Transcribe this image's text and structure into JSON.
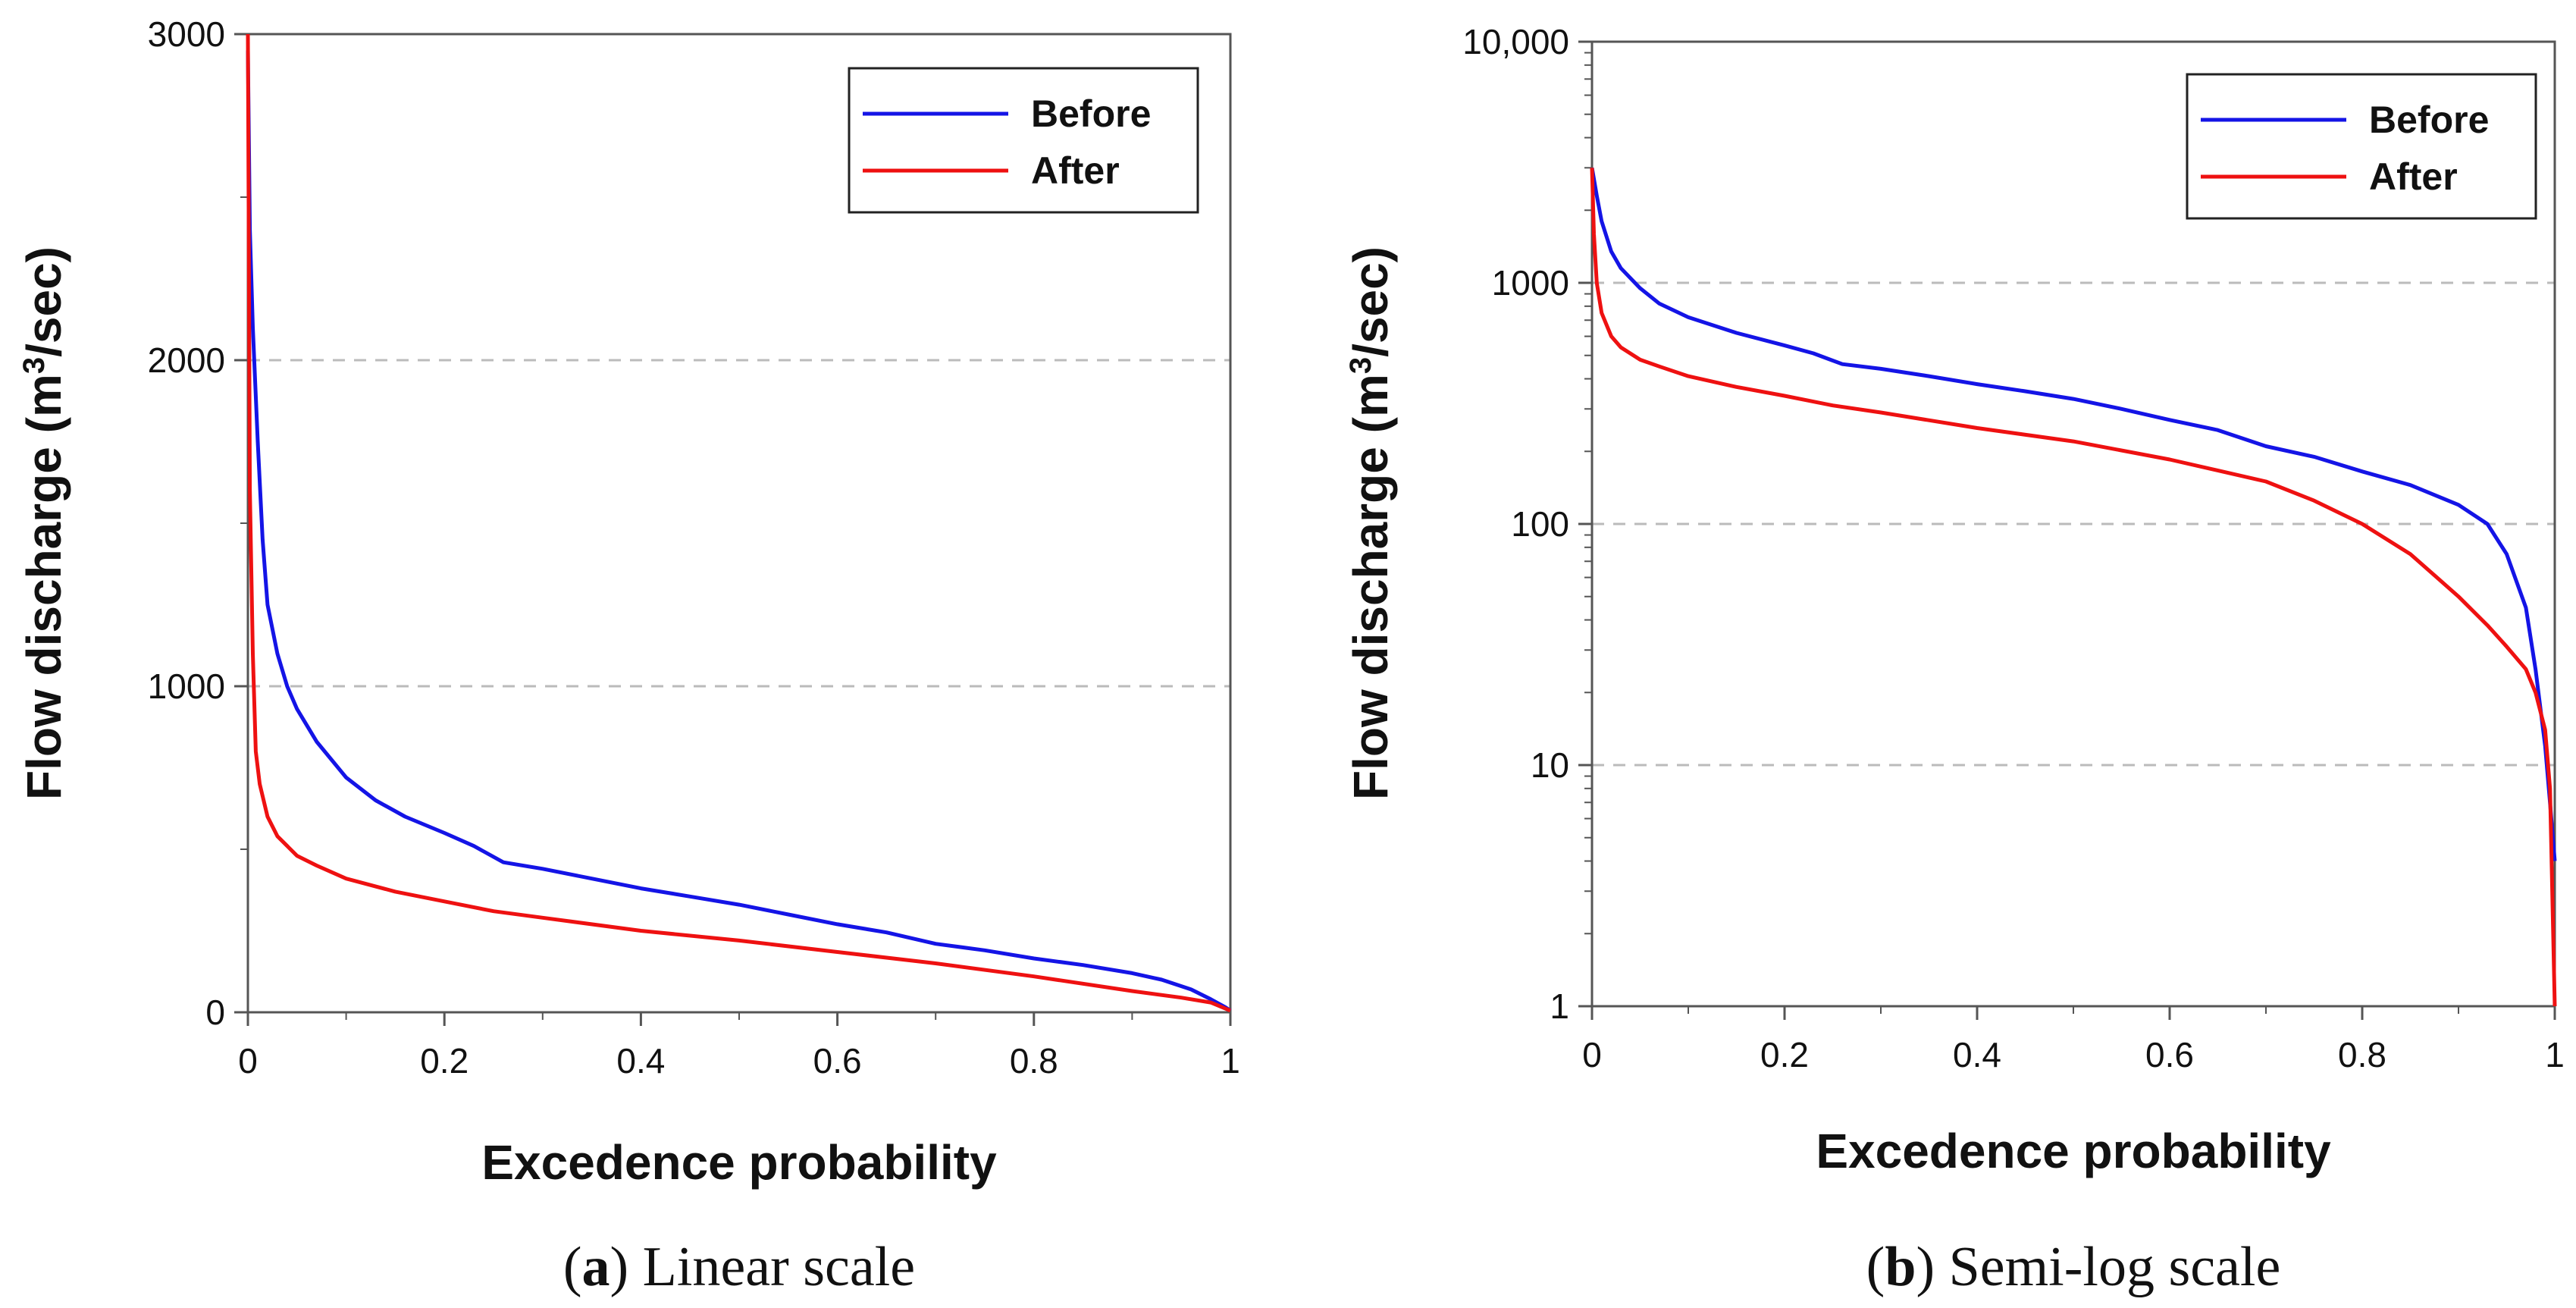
{
  "figure": {
    "captions": [
      {
        "label": "a",
        "text": " Linear scale"
      },
      {
        "label": "b",
        "text": " Semi-log scale"
      }
    ]
  },
  "chart_data": [
    {
      "type": "line",
      "title": "",
      "caption_label": "a",
      "caption_text": "Linear scale",
      "xlabel": "Excedence probability",
      "ylabel_main": "Flow discharge (m",
      "ylabel_sup": "3",
      "ylabel_tail": "/sec)",
      "scale": "linear",
      "xlim": [
        0,
        1
      ],
      "ylim": [
        0,
        3000
      ],
      "x_ticks": [
        0,
        0.2,
        0.4,
        0.6,
        0.8,
        1
      ],
      "x_tick_labels": [
        "0",
        "0.2",
        "0.4",
        "0.6",
        "0.8",
        "1"
      ],
      "y_ticks": [
        0,
        1000,
        2000,
        3000
      ],
      "y_tick_labels": [
        "0",
        "1000",
        "2000",
        "3000"
      ],
      "gridlines_y": [
        1000,
        2000
      ],
      "legend_position": "top-right",
      "series": [
        {
          "name": "Before",
          "color": "#1414e6",
          "x": [
            0,
            0.002,
            0.005,
            0.01,
            0.015,
            0.02,
            0.03,
            0.04,
            0.05,
            0.07,
            0.1,
            0.13,
            0.16,
            0.2,
            0.23,
            0.26,
            0.3,
            0.35,
            0.4,
            0.45,
            0.5,
            0.55,
            0.6,
            0.65,
            0.7,
            0.75,
            0.8,
            0.85,
            0.9,
            0.93,
            0.96,
            0.98,
            0.995,
            1.0
          ],
          "y": [
            2950,
            2400,
            2100,
            1750,
            1450,
            1250,
            1100,
            1000,
            930,
            830,
            720,
            650,
            600,
            550,
            510,
            460,
            440,
            410,
            380,
            355,
            330,
            300,
            270,
            245,
            210,
            190,
            165,
            145,
            120,
            100,
            70,
            40,
            15,
            5
          ]
        },
        {
          "name": "After",
          "color": "#ee1111",
          "x": [
            0,
            0.002,
            0.005,
            0.008,
            0.012,
            0.02,
            0.03,
            0.05,
            0.07,
            0.1,
            0.15,
            0.2,
            0.25,
            0.3,
            0.4,
            0.5,
            0.6,
            0.7,
            0.8,
            0.9,
            0.95,
            0.98,
            1.0
          ],
          "y": [
            3000,
            1600,
            1100,
            800,
            700,
            600,
            540,
            480,
            450,
            410,
            370,
            340,
            310,
            290,
            250,
            220,
            185,
            150,
            110,
            65,
            45,
            30,
            5
          ]
        }
      ]
    },
    {
      "type": "line",
      "title": "",
      "caption_label": "b",
      "caption_text": "Semi-log scale",
      "xlabel": "Excedence probability",
      "ylabel_main": "Flow discharge (m",
      "ylabel_sup": "3",
      "ylabel_tail": "/sec)",
      "scale": "log",
      "xlim": [
        0,
        1
      ],
      "ylim": [
        1,
        10000
      ],
      "x_ticks": [
        0,
        0.2,
        0.4,
        0.6,
        0.8,
        1
      ],
      "x_tick_labels": [
        "0",
        "0.2",
        "0.4",
        "0.6",
        "0.8",
        "1"
      ],
      "y_ticks": [
        1,
        10,
        100,
        1000,
        10000
      ],
      "y_tick_labels": [
        "1",
        "10",
        "100",
        "1000",
        "10,000"
      ],
      "gridlines_y": [
        10,
        100,
        1000
      ],
      "legend_position": "top-right",
      "series": [
        {
          "name": "Before",
          "color": "#1414e6",
          "x": [
            0,
            0.005,
            0.01,
            0.02,
            0.03,
            0.05,
            0.07,
            0.1,
            0.15,
            0.2,
            0.23,
            0.26,
            0.3,
            0.35,
            0.4,
            0.45,
            0.5,
            0.55,
            0.6,
            0.65,
            0.7,
            0.75,
            0.8,
            0.85,
            0.9,
            0.93,
            0.95,
            0.97,
            0.98,
            0.99,
            0.995,
            1.0
          ],
          "y": [
            3000,
            2300,
            1800,
            1350,
            1150,
            950,
            820,
            720,
            620,
            550,
            510,
            460,
            440,
            410,
            380,
            355,
            330,
            300,
            270,
            245,
            210,
            190,
            165,
            145,
            120,
            100,
            75,
            45,
            25,
            12,
            7,
            4
          ]
        },
        {
          "name": "After",
          "color": "#ee1111",
          "x": [
            0,
            0.002,
            0.005,
            0.01,
            0.02,
            0.03,
            0.05,
            0.07,
            0.1,
            0.15,
            0.2,
            0.25,
            0.3,
            0.4,
            0.5,
            0.6,
            0.7,
            0.75,
            0.8,
            0.85,
            0.9,
            0.93,
            0.95,
            0.97,
            0.98,
            0.99,
            0.995,
            1.0
          ],
          "y": [
            3000,
            1600,
            1000,
            750,
            600,
            540,
            480,
            450,
            410,
            370,
            340,
            310,
            290,
            250,
            220,
            185,
            150,
            125,
            100,
            75,
            50,
            38,
            31,
            25,
            20,
            14,
            8,
            1
          ]
        }
      ]
    }
  ]
}
